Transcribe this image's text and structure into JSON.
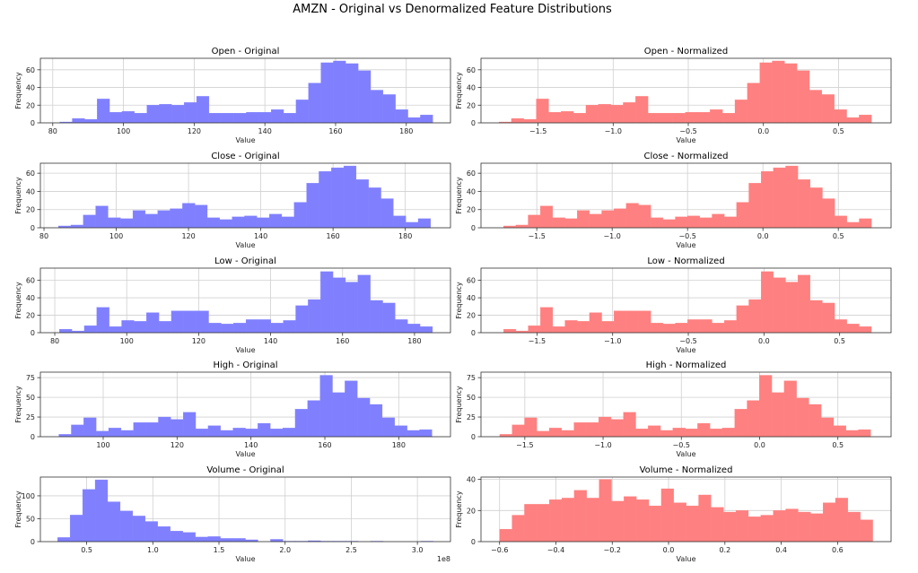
{
  "figure": {
    "suptitle": "AMZN - Original vs Denormalized Feature Distributions",
    "colors": {
      "original": "#8080ff",
      "normalized": "#ff8080"
    }
  },
  "chart_data": [
    {
      "type": "bar",
      "subtype": "histogram",
      "title": "Open - Original",
      "xlabel": "Value",
      "ylabel": "Frequency",
      "series_color": "original",
      "grid": true,
      "bin_range": [
        82,
        187.5
      ],
      "xlim": [
        76.5,
        192.5
      ],
      "ylim": [
        0,
        73
      ],
      "xticks": [
        80,
        100,
        120,
        140,
        160,
        180
      ],
      "xtick_labels": [
        "80",
        "100",
        "120",
        "140",
        "160",
        "180"
      ],
      "yticks": [
        0,
        20,
        40,
        60
      ],
      "ytick_labels": [
        "0",
        "20",
        "40",
        "60"
      ],
      "offset_label": "",
      "values": [
        1,
        5,
        4,
        27,
        12,
        13,
        11,
        20,
        21,
        20,
        23,
        30,
        11,
        11,
        11,
        12,
        12,
        15,
        11,
        26,
        45,
        68,
        70,
        67,
        59,
        37,
        32,
        15,
        6,
        9
      ]
    },
    {
      "type": "bar",
      "subtype": "histogram",
      "title": "Open - Normalized",
      "xlabel": "Value",
      "ylabel": "Frequency",
      "series_color": "normalized",
      "grid": true,
      "bin_range": [
        -1.76,
        0.72
      ],
      "xlim": [
        -1.88,
        0.85
      ],
      "ylim": [
        0,
        73
      ],
      "xticks": [
        -1.5,
        -1.0,
        -0.5,
        0.0,
        0.5
      ],
      "xtick_labels": [
        "−1.5",
        "−1.0",
        "−0.5",
        "0.0",
        "0.5"
      ],
      "yticks": [
        0,
        20,
        40,
        60
      ],
      "ytick_labels": [
        "0",
        "20",
        "40",
        "60"
      ],
      "offset_label": "",
      "values": [
        1,
        5,
        4,
        27,
        12,
        13,
        11,
        20,
        21,
        20,
        23,
        30,
        11,
        11,
        11,
        12,
        12,
        15,
        11,
        26,
        45,
        68,
        70,
        67,
        59,
        37,
        32,
        15,
        6,
        9
      ]
    },
    {
      "type": "bar",
      "subtype": "histogram",
      "title": "Close - Original",
      "xlabel": "Value",
      "ylabel": "Frequency",
      "series_color": "original",
      "grid": true,
      "bin_range": [
        84,
        187
      ],
      "xlim": [
        79,
        192.5
      ],
      "ylim": [
        0,
        71
      ],
      "xticks": [
        80,
        100,
        120,
        140,
        160,
        180
      ],
      "xtick_labels": [
        "80",
        "100",
        "120",
        "140",
        "160",
        "180"
      ],
      "yticks": [
        0,
        20,
        40,
        60
      ],
      "ytick_labels": [
        "0",
        "20",
        "40",
        "60"
      ],
      "offset_label": "",
      "values": [
        2,
        3,
        14,
        24,
        11,
        10,
        19,
        15,
        19,
        21,
        27,
        25,
        11,
        9,
        12,
        13,
        11,
        15,
        12,
        28,
        49,
        62,
        66,
        68,
        53,
        44,
        32,
        13,
        6,
        10
      ]
    },
    {
      "type": "bar",
      "subtype": "histogram",
      "title": "Close - Normalized",
      "xlabel": "Value",
      "ylabel": "Frequency",
      "series_color": "normalized",
      "grid": true,
      "bin_range": [
        -1.72,
        0.72
      ],
      "xlim": [
        -1.87,
        0.85
      ],
      "ylim": [
        0,
        71
      ],
      "xticks": [
        -1.5,
        -1.0,
        -0.5,
        0.0,
        0.5
      ],
      "xtick_labels": [
        "−1.5",
        "−1.0",
        "−0.5",
        "0.0",
        "0.5"
      ],
      "yticks": [
        0,
        20,
        40,
        60
      ],
      "ytick_labels": [
        "0",
        "20",
        "40",
        "60"
      ],
      "offset_label": "",
      "values": [
        2,
        3,
        14,
        24,
        11,
        10,
        19,
        15,
        19,
        21,
        27,
        25,
        11,
        9,
        12,
        13,
        11,
        15,
        12,
        28,
        49,
        62,
        66,
        68,
        53,
        44,
        32,
        13,
        6,
        10
      ]
    },
    {
      "type": "bar",
      "subtype": "histogram",
      "title": "Low - Original",
      "xlabel": "Value",
      "ylabel": "Frequency",
      "series_color": "original",
      "grid": true,
      "bin_range": [
        81.3,
        185
      ],
      "xlim": [
        76,
        190
      ],
      "ylim": [
        0,
        74
      ],
      "xticks": [
        80,
        100,
        120,
        140,
        160,
        180
      ],
      "xtick_labels": [
        "80",
        "100",
        "120",
        "140",
        "160",
        "180"
      ],
      "yticks": [
        0,
        20,
        40,
        60
      ],
      "ytick_labels": [
        "0",
        "20",
        "40",
        "60"
      ],
      "offset_label": "",
      "values": [
        4,
        2,
        8,
        29,
        7,
        14,
        13,
        23,
        13,
        25,
        25,
        25,
        11,
        10,
        11,
        15,
        15,
        11,
        14,
        31,
        38,
        70,
        63,
        58,
        66,
        37,
        34,
        15,
        10,
        7
      ]
    },
    {
      "type": "bar",
      "subtype": "histogram",
      "title": "Low - Normalized",
      "xlabel": "Value",
      "ylabel": "Frequency",
      "series_color": "normalized",
      "grid": true,
      "bin_range": [
        -1.72,
        0.71
      ],
      "xlim": [
        -1.87,
        0.84
      ],
      "ylim": [
        0,
        74
      ],
      "xticks": [
        -1.5,
        -1.0,
        -0.5,
        0.0,
        0.5
      ],
      "xtick_labels": [
        "−1.5",
        "−1.0",
        "−0.5",
        "0.0",
        "0.5"
      ],
      "yticks": [
        0,
        20,
        40,
        60
      ],
      "ytick_labels": [
        "0",
        "20",
        "40",
        "60"
      ],
      "offset_label": "",
      "values": [
        4,
        2,
        8,
        29,
        7,
        14,
        13,
        23,
        13,
        25,
        25,
        25,
        11,
        10,
        11,
        15,
        15,
        11,
        14,
        31,
        38,
        70,
        63,
        58,
        66,
        37,
        34,
        15,
        10,
        7
      ]
    },
    {
      "type": "bar",
      "subtype": "histogram",
      "title": "High - Original",
      "xlabel": "Value",
      "ylabel": "Frequency",
      "series_color": "original",
      "grid": true,
      "bin_range": [
        88,
        189
      ],
      "xlim": [
        83,
        194
      ],
      "ylim": [
        0,
        82
      ],
      "xticks": [
        100,
        120,
        140,
        160,
        180
      ],
      "xtick_labels": [
        "100",
        "120",
        "140",
        "160",
        "180"
      ],
      "yticks": [
        0,
        25,
        50,
        75
      ],
      "ytick_labels": [
        "0",
        "25",
        "50",
        "75"
      ],
      "offset_label": "",
      "values": [
        3,
        15,
        24,
        7,
        11,
        8,
        18,
        18,
        25,
        22,
        31,
        10,
        14,
        8,
        11,
        10,
        17,
        10,
        11,
        35,
        46,
        78,
        56,
        71,
        49,
        41,
        24,
        14,
        8,
        9
      ]
    },
    {
      "type": "bar",
      "subtype": "histogram",
      "title": "High - Normalized",
      "xlabel": "Value",
      "ylabel": "Frequency",
      "series_color": "normalized",
      "grid": true,
      "bin_range": [
        -1.66,
        0.71
      ],
      "xlim": [
        -1.78,
        0.84
      ],
      "ylim": [
        0,
        82
      ],
      "xticks": [
        -1.5,
        -1.0,
        -0.5,
        0.0,
        0.5
      ],
      "xtick_labels": [
        "−1.5",
        "−1.0",
        "−0.5",
        "0.0",
        "0.5"
      ],
      "yticks": [
        0,
        25,
        50,
        75
      ],
      "ytick_labels": [
        "0",
        "25",
        "50",
        "75"
      ],
      "offset_label": "",
      "values": [
        3,
        15,
        24,
        7,
        11,
        8,
        18,
        18,
        25,
        22,
        31,
        10,
        14,
        8,
        11,
        10,
        17,
        10,
        11,
        35,
        46,
        78,
        56,
        71,
        49,
        41,
        24,
        14,
        8,
        9
      ]
    },
    {
      "type": "bar",
      "subtype": "histogram",
      "title": "Volume - Original",
      "xlabel": "Value",
      "ylabel": "Frequency",
      "series_color": "original",
      "grid": true,
      "bin_range": [
        0.28,
        3.12
      ],
      "xlim": [
        0.15,
        3.25
      ],
      "ylim": [
        0,
        141
      ],
      "xticks": [
        0.5,
        1.0,
        1.5,
        2.0,
        2.5,
        3.0
      ],
      "xtick_labels": [
        "0.5",
        "1.0",
        "1.5",
        "2.0",
        "2.5",
        "3.0"
      ],
      "yticks": [
        0,
        50,
        100
      ],
      "ytick_labels": [
        "0",
        "50",
        "100"
      ],
      "offset_label": "1e8",
      "values": [
        9,
        58,
        114,
        135,
        87,
        67,
        56,
        44,
        33,
        23,
        20,
        10,
        11,
        7,
        7,
        4,
        0,
        5,
        1,
        1,
        2,
        1,
        1,
        1,
        0,
        1,
        0,
        0,
        0,
        1
      ]
    },
    {
      "type": "bar",
      "subtype": "histogram",
      "title": "Volume - Normalized",
      "xlabel": "Value",
      "ylabel": "Frequency",
      "series_color": "normalized",
      "grid": true,
      "bin_range": [
        -0.6,
        0.725
      ],
      "xlim": [
        -0.666,
        0.79
      ],
      "ylim": [
        0,
        41.5
      ],
      "xticks": [
        -0.6,
        -0.4,
        -0.2,
        0.0,
        0.2,
        0.4,
        0.6
      ],
      "xtick_labels": [
        "−0.6",
        "−0.4",
        "−0.2",
        "0.0",
        "0.2",
        "0.4",
        "0.6"
      ],
      "yticks": [
        0,
        20,
        40
      ],
      "ytick_labels": [
        "0",
        "20",
        "40"
      ],
      "offset_label": "",
      "values": [
        8,
        17,
        24,
        24,
        27,
        28,
        33,
        28,
        40,
        26,
        29,
        27,
        23,
        34,
        25,
        23,
        30,
        22,
        19,
        20,
        16,
        17,
        20,
        21,
        19,
        18,
        25,
        28,
        19,
        14
      ]
    }
  ]
}
